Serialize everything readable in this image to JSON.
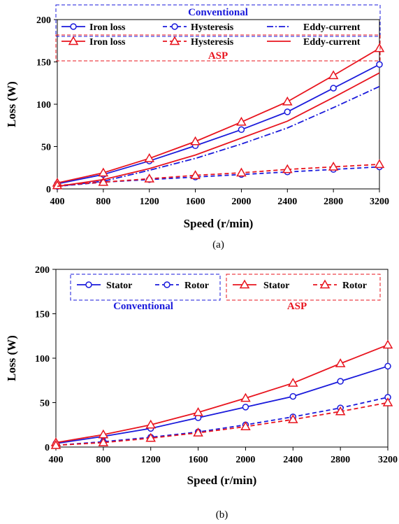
{
  "colors": {
    "conventional": "#1a1adb",
    "asp": "#e8141e",
    "axis": "#000000"
  },
  "chart_data": [
    {
      "type": "line",
      "caption": "(a)",
      "xlabel": "Speed (r/min)",
      "ylabel": "Loss (W)",
      "xlim": [
        400,
        3200
      ],
      "ylim": [
        0,
        200
      ],
      "x_ticks": [
        400,
        800,
        1200,
        1600,
        2000,
        2400,
        2800,
        3200
      ],
      "y_ticks": [
        0,
        50,
        100,
        150,
        200
      ],
      "grid": false,
      "x": [
        400,
        800,
        1200,
        1600,
        2000,
        2400,
        2800,
        3200
      ],
      "legend": {
        "group_labels": [
          "Conventional",
          "ASP"
        ],
        "placement": "top"
      },
      "series": [
        {
          "name": "Iron loss",
          "group": "Conventional",
          "color": "#1a1adb",
          "dash": "solid",
          "marker": "circle",
          "values": [
            6,
            17,
            33,
            51,
            70,
            91,
            119,
            147
          ]
        },
        {
          "name": "Hysteresis",
          "group": "Conventional",
          "color": "#1a1adb",
          "dash": "dash",
          "marker": "circle",
          "values": [
            3,
            8,
            11,
            14,
            17,
            20,
            23,
            26
          ]
        },
        {
          "name": "Eddy-current",
          "group": "Conventional",
          "color": "#1a1adb",
          "dash": "dashdot",
          "marker": "none",
          "values": [
            3,
            9,
            22,
            36,
            53,
            72,
            96,
            121
          ]
        },
        {
          "name": "Iron loss",
          "group": "ASP",
          "color": "#e8141e",
          "dash": "solid",
          "marker": "triangle",
          "values": [
            7,
            19,
            36,
            56,
            79,
            103,
            134,
            166
          ]
        },
        {
          "name": "Hysteresis",
          "group": "ASP",
          "color": "#e8141e",
          "dash": "dash",
          "marker": "triangle",
          "values": [
            4,
            8,
            12,
            16,
            19,
            23,
            26,
            29
          ]
        },
        {
          "name": "Eddy-current",
          "group": "ASP",
          "color": "#e8141e",
          "dash": "solid",
          "marker": "none",
          "values": [
            3,
            11,
            24,
            40,
            60,
            80,
            108,
            137
          ]
        }
      ]
    },
    {
      "type": "line",
      "caption": "(b)",
      "xlabel": "Speed (r/min)",
      "ylabel": "Loss (W)",
      "xlim": [
        400,
        3200
      ],
      "ylim": [
        0,
        200
      ],
      "x_ticks": [
        400,
        800,
        1200,
        1600,
        2000,
        2400,
        2800,
        3200
      ],
      "y_ticks": [
        0,
        50,
        100,
        150,
        200
      ],
      "grid": false,
      "x": [
        400,
        800,
        1200,
        1600,
        2000,
        2400,
        2800,
        3200
      ],
      "legend": {
        "group_labels": [
          "Conventional",
          "ASP"
        ],
        "placement": "top"
      },
      "series": [
        {
          "name": "Stator",
          "group": "Conventional",
          "color": "#1a1adb",
          "dash": "solid",
          "marker": "circle",
          "values": [
            4,
            12,
            21,
            33,
            45,
            57,
            74,
            91
          ]
        },
        {
          "name": "Rotor",
          "group": "Conventional",
          "color": "#1a1adb",
          "dash": "dash",
          "marker": "circle",
          "values": [
            2,
            6,
            11,
            17,
            25,
            34,
            44,
            56
          ]
        },
        {
          "name": "Stator",
          "group": "ASP",
          "color": "#e8141e",
          "dash": "solid",
          "marker": "triangle",
          "values": [
            5,
            14,
            25,
            39,
            55,
            72,
            94,
            115
          ]
        },
        {
          "name": "Rotor",
          "group": "ASP",
          "color": "#e8141e",
          "dash": "dash",
          "marker": "triangle",
          "values": [
            2,
            5,
            10,
            16,
            23,
            31,
            40,
            50
          ]
        }
      ]
    }
  ]
}
